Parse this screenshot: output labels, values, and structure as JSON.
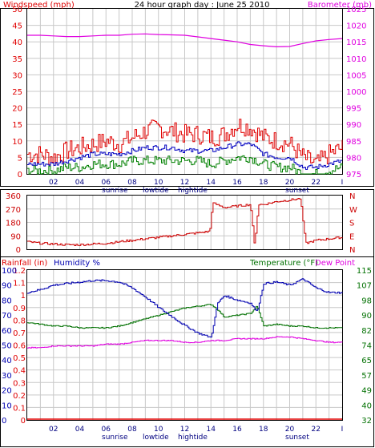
{
  "title": "24 hour graph day : June 25 2010",
  "colors": {
    "wind": "#e00000",
    "wind_avg": "#0000c0",
    "wind_min": "#008000",
    "baro": "#e000e0",
    "direction": "#cc0000",
    "humidity": "#0000b0",
    "temperature": "#007000",
    "dewpoint": "#e000e0",
    "rain": "#e00000"
  },
  "x_ticks": [
    "02",
    "04",
    "06",
    "08",
    "10",
    "12",
    "14",
    "16",
    "18",
    "20",
    "22",
    "I"
  ],
  "sun_labels": {
    "sunrise": "sunrise",
    "lowtide": "lowtide",
    "hightide": "hightide",
    "sunset": "sunset"
  },
  "chart_data": [
    {
      "type": "line",
      "name": "wind-barometer",
      "left_label": "Windspeed (mph)",
      "right_label": "Barometer (mb)",
      "left_ticks": [
        "50",
        "45",
        "40",
        "35",
        "30",
        "25",
        "20",
        "15",
        "10",
        "5",
        "0"
      ],
      "right_ticks": [
        "1025",
        "1020",
        "1015",
        "1010",
        "1005",
        "1000",
        "995",
        "990",
        "985",
        "980",
        "975"
      ],
      "ylim_left": [
        0,
        50
      ],
      "ylim_right": [
        975,
        1025
      ],
      "x": [
        0,
        1,
        2,
        3,
        4,
        5,
        6,
        7,
        8,
        9,
        10,
        11,
        12,
        13,
        14,
        15,
        16,
        17,
        18,
        19,
        20,
        21,
        22,
        23,
        24
      ],
      "series": [
        {
          "key": "gust",
          "axis": "left",
          "values": [
            6,
            6,
            5,
            7,
            8,
            9,
            10,
            9,
            11,
            13,
            14,
            13,
            12,
            12,
            11,
            12,
            15,
            14,
            11,
            10,
            9,
            5,
            3,
            6,
            8
          ]
        },
        {
          "key": "avg",
          "axis": "left",
          "values": [
            3,
            3,
            3,
            4,
            5,
            6,
            6,
            6,
            7,
            8,
            8,
            8,
            7,
            7,
            7,
            8,
            9,
            9,
            6,
            5,
            5,
            2,
            2,
            3,
            4
          ]
        },
        {
          "key": "min",
          "axis": "left",
          "values": [
            1,
            1,
            1,
            2,
            2,
            3,
            3,
            3,
            4,
            4,
            4,
            4,
            4,
            4,
            3,
            4,
            5,
            5,
            3,
            2,
            2,
            0,
            0,
            1,
            2
          ]
        },
        {
          "key": "baro",
          "axis": "right",
          "values": [
            1017,
            1017,
            1016.8,
            1016.6,
            1016.6,
            1016.8,
            1017,
            1017,
            1017.3,
            1017.4,
            1017.2,
            1017.1,
            1017,
            1016.5,
            1016,
            1015.5,
            1015,
            1014.2,
            1013.8,
            1013.5,
            1013.6,
            1014.5,
            1015.3,
            1015.7,
            1016
          ]
        }
      ]
    },
    {
      "type": "line",
      "name": "wind-direction",
      "left_ticks": [
        "360",
        "270",
        "180",
        "90",
        "0"
      ],
      "right_ticks": [
        "N",
        "W",
        "S",
        "E",
        "N"
      ],
      "ylim": [
        0,
        360
      ],
      "x": [
        0,
        1,
        2,
        3,
        4,
        5,
        6,
        7,
        8,
        9,
        10,
        11,
        12,
        13,
        13.9,
        14.1,
        15,
        16,
        17,
        17.3,
        17.6,
        18,
        19,
        20,
        20.8,
        21.2,
        22,
        23,
        24
      ],
      "values": [
        50,
        40,
        35,
        30,
        30,
        35,
        40,
        50,
        60,
        70,
        80,
        90,
        100,
        110,
        120,
        310,
        280,
        290,
        300,
        20,
        300,
        300,
        320,
        330,
        340,
        40,
        60,
        70,
        80
      ]
    },
    {
      "type": "line",
      "name": "rain-humidity-temperature",
      "left_label": "Rainfall (in)",
      "left_label2": "Humidity %",
      "right_label": "Temperature (°F)",
      "right_label2": "Dew Point",
      "rain_ticks": [
        "1.2",
        "1.1",
        "1",
        "0.9",
        "0.8",
        "0.7",
        "0.6",
        "0.5",
        "0.4",
        "0.3",
        "0.2",
        "0.1",
        "0"
      ],
      "humidity_ticks": [
        "100",
        "90",
        "80",
        "70",
        "60",
        "50",
        "40",
        "30",
        "20",
        "10",
        "0"
      ],
      "temp_ticks": [
        "115",
        "107",
        "98",
        "90",
        "82",
        "74",
        "65",
        "57",
        "49",
        "40",
        "32"
      ],
      "ylim_humidity": [
        0,
        100
      ],
      "ylim_temp": [
        32,
        115
      ],
      "x": [
        0,
        1,
        2,
        3,
        4,
        5,
        6,
        7,
        8,
        9,
        10,
        11,
        12,
        13,
        14,
        14.5,
        15,
        16,
        17,
        17.5,
        18,
        19,
        20,
        21,
        22,
        23,
        24
      ],
      "series": [
        {
          "key": "humidity",
          "values": [
            85,
            87,
            90,
            91,
            92,
            93,
            93,
            92,
            88,
            82,
            75,
            69,
            63,
            58,
            55,
            78,
            83,
            80,
            78,
            72,
            91,
            92,
            90,
            94,
            88,
            85,
            85
          ]
        },
        {
          "key": "temperature",
          "values": [
            86,
            85,
            84,
            84,
            83,
            83,
            83,
            84,
            86,
            88,
            90,
            92,
            94,
            95,
            96,
            93,
            89,
            90,
            91,
            95,
            84,
            85,
            84,
            84,
            83,
            83,
            83
          ]
        },
        {
          "key": "dewpoint",
          "values": [
            72,
            72,
            73,
            73,
            73,
            73,
            74,
            74,
            75,
            76,
            76,
            76,
            75,
            75,
            76,
            76,
            76,
            77,
            77,
            77,
            77,
            78,
            78,
            77,
            76,
            75,
            75
          ]
        },
        {
          "key": "rain",
          "values": [
            0,
            0,
            0,
            0,
            0,
            0,
            0,
            0,
            0,
            0,
            0,
            0,
            0,
            0,
            0,
            0,
            0,
            0,
            0,
            0,
            0,
            0,
            0,
            0,
            0,
            0,
            0
          ]
        }
      ]
    }
  ]
}
